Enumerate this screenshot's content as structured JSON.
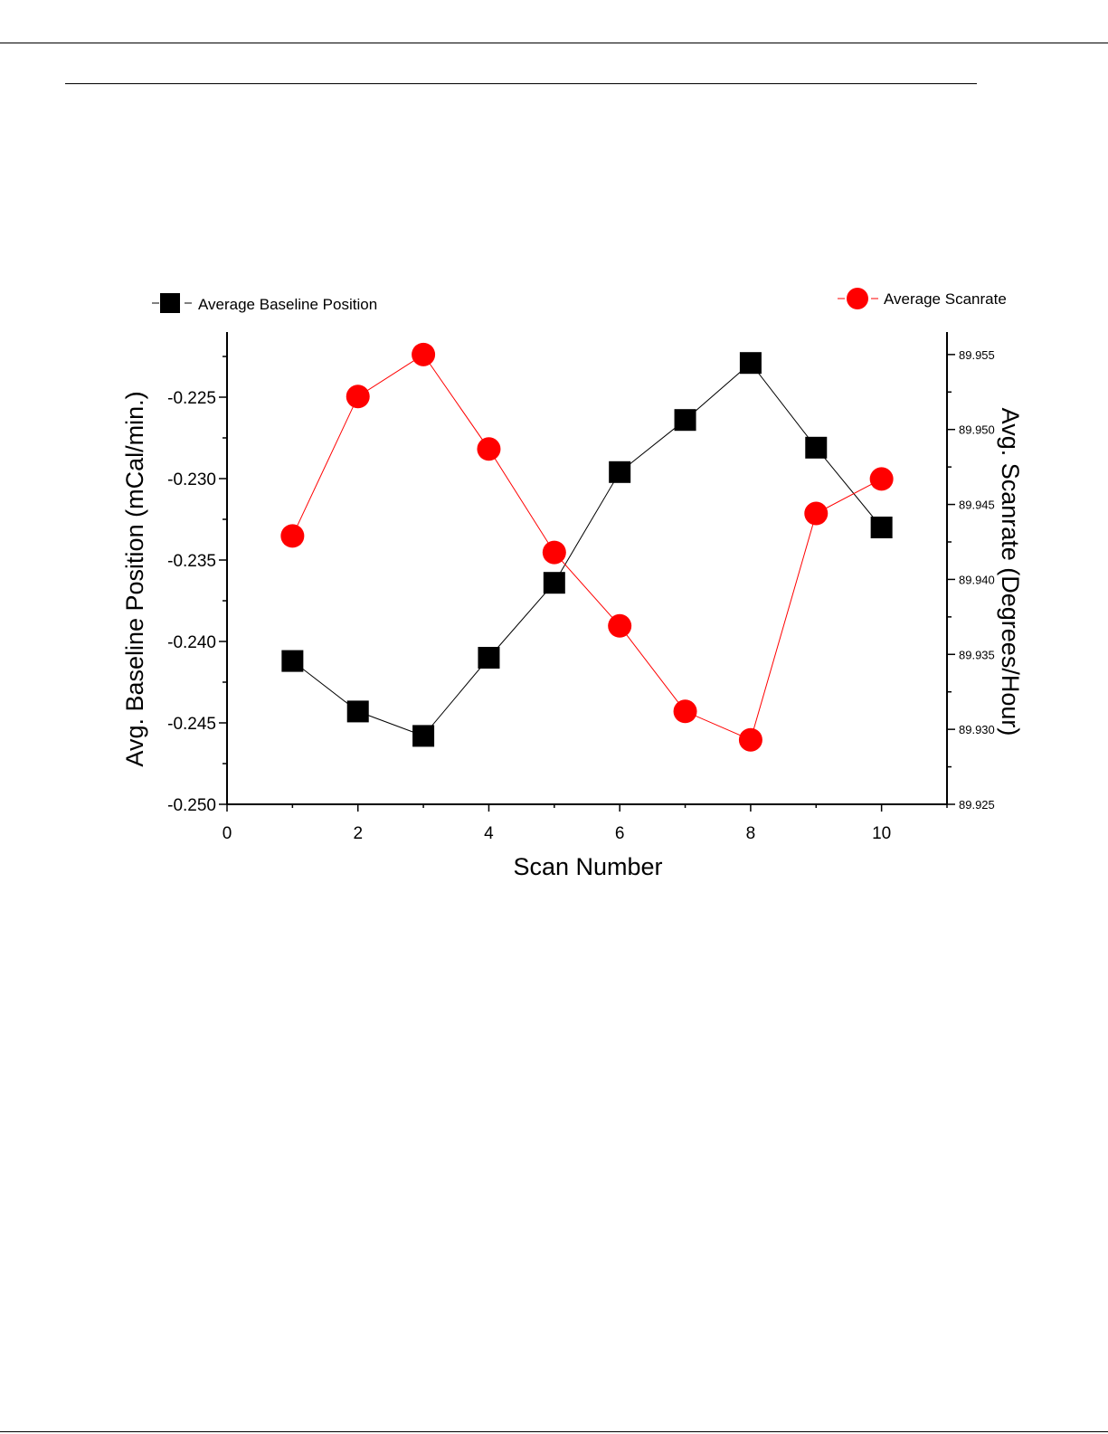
{
  "chart_data": {
    "type": "line",
    "xlabel": "Scan Number",
    "ylabel": "Avg. Baseline Position (mCal/min.)",
    "y2label": "Avg. Scanrate (Degrees/Hour)",
    "xlim": [
      0,
      11
    ],
    "ylim": [
      -0.25,
      -0.221
    ],
    "y2lim": [
      89.925,
      89.9565
    ],
    "x_ticks": [
      "0",
      "2",
      "4",
      "6",
      "8",
      "10"
    ],
    "y_ticks": [
      "-0.250",
      "-0.245",
      "-0.240",
      "-0.235",
      "-0.230",
      "-0.225"
    ],
    "y2_ticks": [
      "89.925",
      "89.930",
      "89.935",
      "89.940",
      "89.945",
      "89.950",
      "89.955"
    ],
    "grid": false,
    "series": [
      {
        "name": "Average Baseline Position",
        "axis": "left",
        "marker": "square",
        "color": "#000000",
        "x": [
          1,
          2,
          3,
          4,
          5,
          6,
          7,
          8,
          9,
          10
        ],
        "values": [
          -0.2412,
          -0.2443,
          -0.2458,
          -0.241,
          -0.2364,
          -0.2296,
          -0.2264,
          -0.2229,
          -0.2281,
          -0.233
        ]
      },
      {
        "name": "Average Scanrate",
        "axis": "right",
        "marker": "circle",
        "color": "#ff0000",
        "x": [
          1,
          2,
          3,
          4,
          5,
          6,
          7,
          8,
          9,
          10
        ],
        "values": [
          89.9429,
          89.9522,
          89.955,
          89.9487,
          89.9418,
          89.9369,
          89.9312,
          89.9293,
          89.9444,
          89.9467
        ]
      }
    ],
    "legend": {
      "left_label": "Average Baseline Position",
      "right_label": "Average Scanrate",
      "placement": "top"
    }
  }
}
